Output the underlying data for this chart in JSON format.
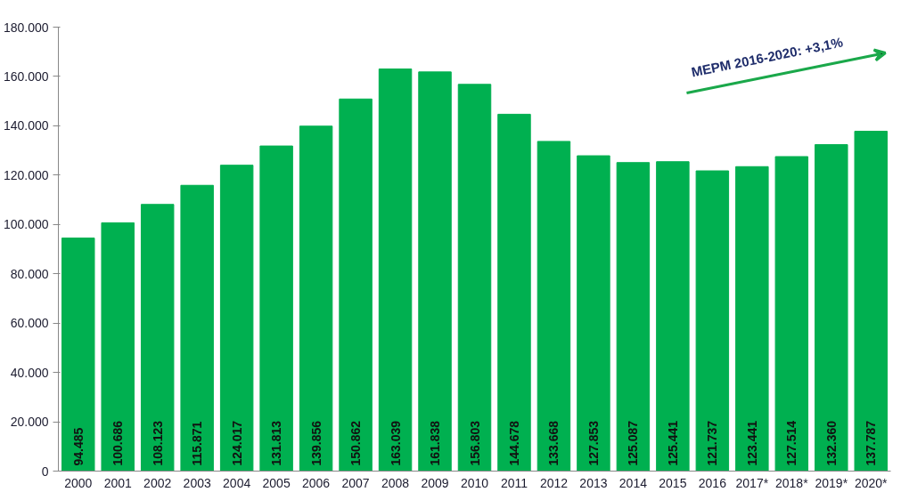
{
  "chart_data": {
    "type": "bar",
    "categories": [
      "2000",
      "2001",
      "2002",
      "2003",
      "2004",
      "2005",
      "2006",
      "2007",
      "2008",
      "2009",
      "2010",
      "2011",
      "2012",
      "2013",
      "2014",
      "2015",
      "2016",
      "2017*",
      "2018*",
      "2019*",
      "2020*"
    ],
    "values": [
      94485,
      100686,
      108123,
      115871,
      124017,
      131813,
      139856,
      150862,
      163039,
      161838,
      156803,
      144678,
      133668,
      127853,
      125087,
      125441,
      121737,
      123441,
      127514,
      132360,
      137787
    ],
    "value_labels": [
      "94.485",
      "100.686",
      "108.123",
      "115.871",
      "124.017",
      "131.813",
      "139.856",
      "150.862",
      "163.039",
      "161.838",
      "156.803",
      "144.678",
      "133.668",
      "127.853",
      "125.087",
      "125.441",
      "121.737",
      "123.441",
      "127.514",
      "132.360",
      "137.787"
    ],
    "color": "#00b050",
    "ylim": [
      0,
      180000
    ],
    "yticks": [
      {
        "value": 0,
        "label": "0"
      },
      {
        "value": 20000,
        "label": "20.000"
      },
      {
        "value": 40000,
        "label": "40.000"
      },
      {
        "value": 60000,
        "label": "60.000"
      },
      {
        "value": 80000,
        "label": "80.000"
      },
      {
        "value": 100000,
        "label": "100.000"
      },
      {
        "value": 120000,
        "label": "120.000"
      },
      {
        "value": 140000,
        "label": "140.000"
      },
      {
        "value": 160000,
        "label": "160.000"
      },
      {
        "value": 180000,
        "label": "180.000"
      }
    ],
    "grid": false,
    "annotations": [
      "ΜΕΡΜ 2016-2020: +3,1%"
    ]
  }
}
